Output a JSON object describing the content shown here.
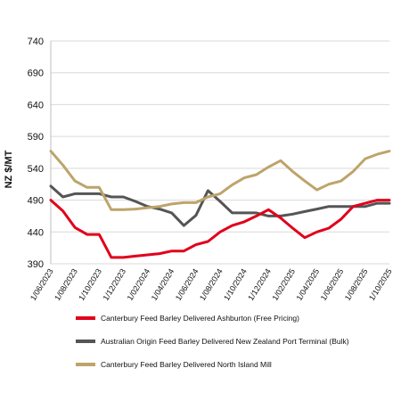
{
  "chart_data": {
    "type": "line",
    "title": "",
    "xlabel": "",
    "ylabel": "NZ $/MT",
    "ylim": [
      390,
      740
    ],
    "yticks": [
      390,
      440,
      490,
      540,
      590,
      640,
      690,
      740
    ],
    "grid": "horizontal",
    "legend_position": "bottom",
    "x": [
      "1/06/2023",
      "1/07/2023",
      "1/08/2023",
      "1/09/2023",
      "1/10/2023",
      "1/11/2023",
      "1/12/2023",
      "1/01/2024",
      "1/02/2024",
      "1/03/2024",
      "1/04/2024",
      "1/05/2024",
      "1/06/2024",
      "1/07/2024",
      "1/08/2024",
      "1/09/2024",
      "1/10/2024",
      "1/11/2024",
      "1/12/2024",
      "1/01/2025",
      "1/02/2025",
      "1/03/2025",
      "1/04/2025",
      "1/05/2025",
      "1/06/2025",
      "1/07/2025",
      "1/08/2025",
      "1/09/2025",
      "1/10/2025"
    ],
    "xtick_labels": [
      "1/06/2023",
      "1/08/2023",
      "1/10/2023",
      "1/12/2023",
      "1/02/2024",
      "1/04/2024",
      "1/06/2024",
      "1/08/2024",
      "1/10/2024",
      "1/12/2024",
      "1/02/2025",
      "1/04/2025",
      "1/06/2025",
      "1/08/2025",
      "1/10/2025"
    ],
    "series": [
      {
        "name": "Canterbury Feed Barley Delivered Ashburton (Free Pricing)",
        "color": "#e1001a",
        "values": [
          490,
          473,
          447,
          436,
          436,
          400,
          400,
          402,
          404,
          406,
          410,
          410,
          420,
          425,
          440,
          450,
          456,
          465,
          475,
          462,
          446,
          431,
          440,
          446,
          460,
          480,
          485,
          490,
          490
        ]
      },
      {
        "name": "Australian Origin Feed Barley Delivered New Zealand Port Terminal (Bulk)",
        "color": "#555555",
        "values": [
          512,
          495,
          500,
          500,
          500,
          495,
          495,
          488,
          480,
          476,
          470,
          450,
          466,
          505,
          488,
          470,
          470,
          470,
          465,
          465,
          468,
          472,
          476,
          480,
          480,
          480,
          480,
          485,
          485
        ]
      },
      {
        "name": "Canterbury Feed Barley Delivered North Island Mill",
        "color": "#bda46a",
        "values": [
          567,
          545,
          520,
          510,
          510,
          475,
          475,
          476,
          478,
          480,
          484,
          486,
          486,
          495,
          500,
          514,
          525,
          530,
          542,
          552,
          535,
          520,
          506,
          515,
          520,
          535,
          555,
          562,
          567
        ]
      }
    ]
  }
}
